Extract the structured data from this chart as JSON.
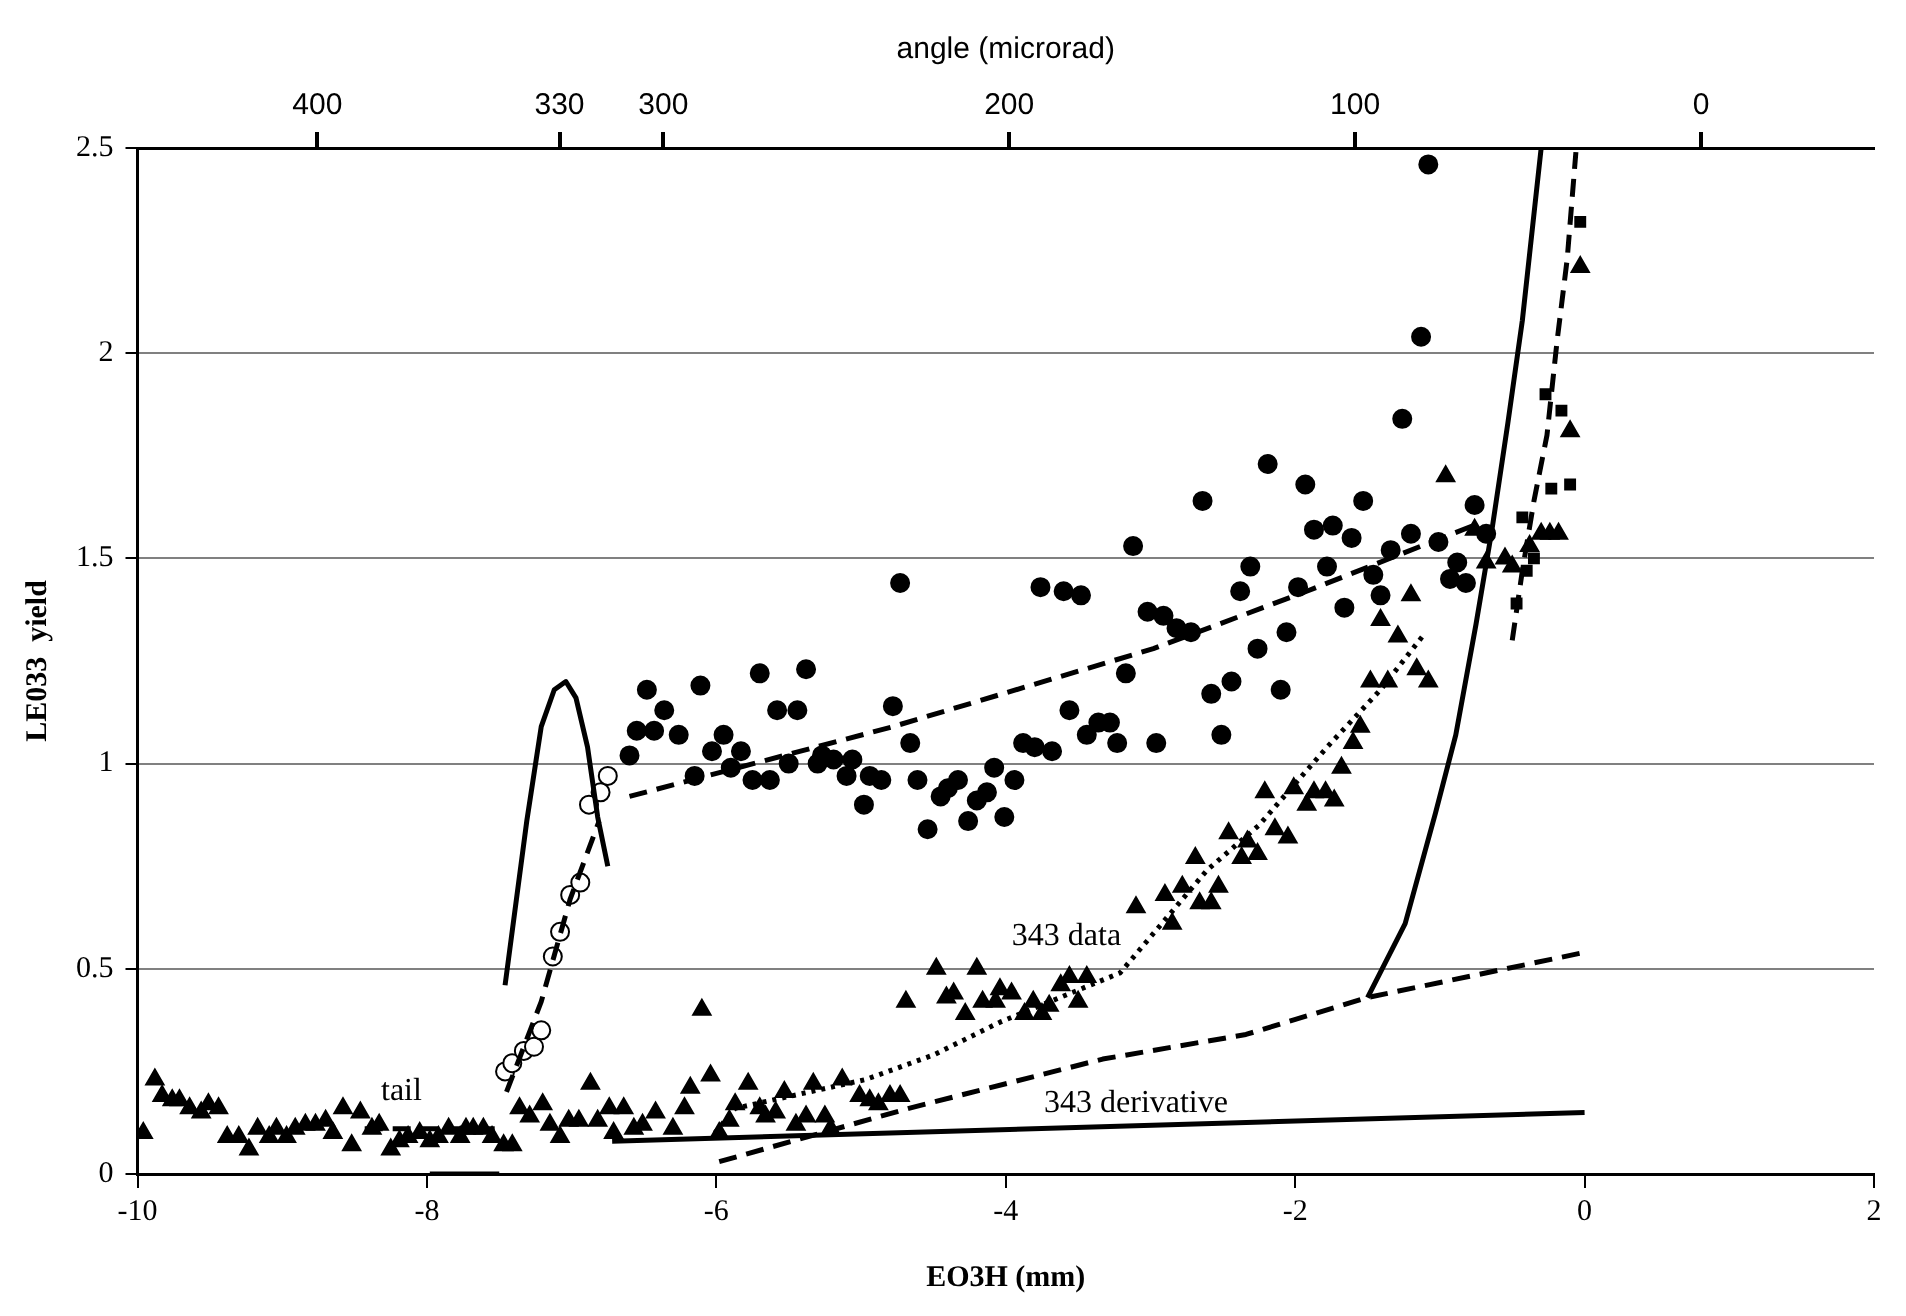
{
  "chart_data": {
    "type": "scatter",
    "xlabel": "EO3H (mm)",
    "ylabel": "LE033  yield",
    "x2label": "angle (microrad)",
    "xlim": [
      -10,
      2
    ],
    "xticks": [
      -10,
      -8,
      -6,
      -4,
      -2,
      0,
      2
    ],
    "ylim": [
      0,
      2.5
    ],
    "yticks": [
      0,
      0.5,
      1,
      1.5,
      2,
      2.5
    ],
    "x2lim": [
      452,
      -50
    ],
    "x2ticks": [
      400,
      330,
      300,
      200,
      100,
      0
    ],
    "grid": "y",
    "legend": false,
    "annotations": [
      "tail",
      "343 data",
      "343 derivative"
    ],
    "series": [
      {
        "type": "line",
        "marker": "none",
        "line_style": "solid",
        "color": "#000000",
        "x": [
          -7.98,
          -7.5
        ],
        "values": [
          0,
          0
        ]
      },
      {
        "type": "line",
        "marker": "none",
        "line_style": "dashed",
        "color": "#000000",
        "x": [
          -8.43,
          -7.5
        ],
        "values": [
          0.11,
          0.11
        ]
      },
      {
        "type": "line",
        "marker": "none",
        "line_style": "solid",
        "color": "#000000",
        "x": [
          -6.72,
          0
        ],
        "values": [
          0.08,
          0.15
        ]
      },
      {
        "type": "line",
        "marker": "none",
        "line_style": "dashed",
        "color": "#000000",
        "x": [
          -5.98,
          -4.67,
          -3.33,
          -2.34,
          -1.5,
          0
        ],
        "values": [
          0.03,
          0.16,
          0.28,
          0.34,
          0.43,
          0.54
        ]
      },
      {
        "type": "line",
        "marker": "none",
        "line_style": "dotted",
        "color": "#000000",
        "x": [
          -6.01,
          -5.87,
          -4.97,
          -4.5,
          -4.04,
          -3.21,
          -2.61,
          -2.25,
          -1.78,
          -1.41,
          -1.12
        ],
        "values": [
          0.1,
          0.16,
          0.23,
          0.29,
          0.37,
          0.49,
          0.74,
          0.85,
          1.04,
          1.18,
          1.31
        ]
      },
      {
        "type": "line",
        "marker": "none",
        "line_style": "dashed",
        "color": "#000000",
        "x": [
          -7.45,
          -7.21,
          -7.01,
          -6.81
        ],
        "values": [
          0.2,
          0.42,
          0.67,
          0.86
        ]
      },
      {
        "type": "line",
        "marker": "none",
        "line_style": "dashed",
        "color": "#000000",
        "x": [
          -6.6,
          -4.78,
          -2.98,
          -1.92,
          -0.77
        ],
        "values": [
          0.92,
          1.09,
          1.28,
          1.42,
          1.58
        ]
      },
      {
        "type": "line",
        "marker": "none",
        "line_style": "solid",
        "color": "#000000",
        "x": [
          -7.46,
          -7.31,
          -7.21,
          -7.12,
          -7.04,
          -6.97,
          -6.89,
          -6.82,
          -6.75
        ],
        "values": [
          0.46,
          0.86,
          1.09,
          1.18,
          1.2,
          1.16,
          1.04,
          0.87,
          0.75
        ]
      },
      {
        "type": "line",
        "marker": "none",
        "line_style": "solid",
        "color": "#000000",
        "x": [
          -1.5,
          -1.24,
          -1.03,
          -0.89,
          -0.75,
          -0.64,
          -0.53,
          -0.43,
          -0.3
        ],
        "values": [
          0.43,
          0.61,
          0.88,
          1.07,
          1.34,
          1.57,
          1.83,
          2.08,
          2.5
        ]
      },
      {
        "type": "line",
        "marker": "none",
        "line_style": "dashed",
        "color": "#000000",
        "x": [
          -0.5,
          -0.43,
          -0.35,
          -0.26,
          -0.19,
          -0.12,
          -0.06
        ],
        "values": [
          1.3,
          1.47,
          1.64,
          1.8,
          2.03,
          2.23,
          2.49
        ]
      },
      {
        "marker": "triangle",
        "color": "#000000",
        "x": [
          -9.96,
          -9.88,
          -9.83,
          -9.76,
          -9.71,
          -9.64,
          -9.56,
          -9.51,
          -9.44,
          -9.38,
          -9.3,
          -9.23,
          -9.17,
          -9.09,
          -9.04,
          -8.97,
          -8.91,
          -8.84,
          -8.77,
          -8.7,
          -8.65,
          -8.58,
          -8.52,
          -8.46,
          -8.38,
          -8.33,
          -8.25,
          -8.19,
          -8.13,
          -8.05,
          -7.98,
          -7.92,
          -7.85,
          -7.77,
          -7.73,
          -7.68,
          -7.61,
          -7.55,
          -7.47,
          -7.41,
          -7.36,
          -7.29,
          -7.2,
          -7.15,
          -7.08,
          -7.02,
          -6.95,
          -6.87,
          -6.82,
          -6.74,
          -6.71,
          -6.64,
          -6.57,
          -6.51,
          -6.42,
          -6.3,
          -6.22,
          -6.18,
          -6.1,
          -6.04,
          -5.87,
          -5.91,
          -5.98,
          -5.78,
          -5.7,
          -5.66,
          -5.59,
          -5.53,
          -5.45,
          -5.38,
          -5.33,
          -5.25,
          -5.21,
          -5.13,
          -5.01,
          -4.94,
          -4.88,
          -4.8,
          -4.73,
          -4.69,
          -4.48,
          -4.41,
          -4.36,
          -4.28,
          -4.2,
          -4.16,
          -4.07,
          -4.04,
          -3.96,
          -3.87,
          -3.81,
          -3.75,
          -3.7,
          -3.62,
          -3.56,
          -3.5,
          -3.44,
          -3.1,
          -2.9,
          -2.85,
          -2.78,
          -2.69,
          -2.66,
          -2.58,
          -2.53,
          -2.46,
          -2.37,
          -2.33,
          -2.26,
          -2.14,
          -2.05,
          -2.21,
          -2.01,
          -1.92,
          -1.87,
          -1.79,
          -1.73,
          -1.68,
          -1.6,
          -1.55,
          -1.48,
          -1.36,
          -1.29,
          -1.16,
          -1.08,
          -1.41,
          -1.2,
          -0.96,
          -0.76,
          -0.68,
          -0.55,
          -0.5,
          -0.38,
          -0.3,
          -0.24,
          -0.18,
          -0.1,
          -0.03
        ],
        "values": [
          0.1,
          0.23,
          0.19,
          0.18,
          0.18,
          0.16,
          0.15,
          0.17,
          0.16,
          0.09,
          0.09,
          0.06,
          0.11,
          0.09,
          0.11,
          0.09,
          0.11,
          0.12,
          0.12,
          0.13,
          0.1,
          0.16,
          0.07,
          0.15,
          0.11,
          0.12,
          0.06,
          0.08,
          0.09,
          0.1,
          0.08,
          0.09,
          0.11,
          0.09,
          0.11,
          0.11,
          0.11,
          0.09,
          0.07,
          0.07,
          0.16,
          0.14,
          0.17,
          0.12,
          0.09,
          0.13,
          0.13,
          0.22,
          0.13,
          0.16,
          0.1,
          0.16,
          0.11,
          0.12,
          0.15,
          0.11,
          0.16,
          0.21,
          0.4,
          0.24,
          0.17,
          0.13,
          0.1,
          0.22,
          0.16,
          0.14,
          0.15,
          0.2,
          0.12,
          0.14,
          0.22,
          0.14,
          0.11,
          0.23,
          0.19,
          0.18,
          0.17,
          0.19,
          0.19,
          0.42,
          0.5,
          0.43,
          0.44,
          0.39,
          0.5,
          0.42,
          0.42,
          0.45,
          0.44,
          0.39,
          0.42,
          0.39,
          0.41,
          0.46,
          0.48,
          0.42,
          0.48,
          0.65,
          0.68,
          0.61,
          0.7,
          0.77,
          0.66,
          0.66,
          0.7,
          0.83,
          0.77,
          0.81,
          0.78,
          0.84,
          0.82,
          0.93,
          0.94,
          0.9,
          0.93,
          0.93,
          0.91,
          0.99,
          1.05,
          1.09,
          1.2,
          1.2,
          1.31,
          1.23,
          1.2,
          1.35,
          1.41,
          1.7,
          1.57,
          1.49,
          1.5,
          1.48,
          1.53,
          1.56,
          1.56,
          1.56,
          1.81,
          2.21
        ]
      },
      {
        "marker": "circle",
        "color": "#000000",
        "x": [
          -6.6,
          -6.48,
          -6.55,
          -6.43,
          -6.36,
          -6.26,
          -6.11,
          -6.15,
          -6.03,
          -5.95,
          -5.9,
          -5.83,
          -5.75,
          -5.7,
          -5.63,
          -5.58,
          -5.44,
          -5.38,
          -5.5,
          -5.3,
          -5.27,
          -5.19,
          -5.06,
          -5.1,
          -4.98,
          -4.94,
          -4.86,
          -4.78,
          -4.73,
          -4.66,
          -4.61,
          -4.54,
          -4.45,
          -4.4,
          -4.33,
          -4.26,
          -4.2,
          -4.13,
          -4.08,
          -4.01,
          -3.94,
          -3.88,
          -3.8,
          -3.76,
          -3.68,
          -3.6,
          -3.48,
          -3.56,
          -3.44,
          -3.28,
          -3.23,
          -3.17,
          -3.12,
          -3.02,
          -2.91,
          -2.82,
          -2.72,
          -3.36,
          -2.96,
          -2.58,
          -2.51,
          -2.64,
          -2.44,
          -2.38,
          -2.31,
          -2.26,
          -2.19,
          -2.1,
          -2.06,
          -1.98,
          -1.93,
          -1.87,
          -1.78,
          -1.74,
          -1.66,
          -1.61,
          -1.53,
          -1.46,
          -1.41,
          -1.34,
          -1.26,
          -1.2,
          -1.13,
          -1.08,
          -1.01,
          -0.93,
          -0.88,
          -0.82,
          -0.76,
          -0.68
        ],
        "values": [
          1.02,
          1.18,
          1.08,
          1.08,
          1.13,
          1.07,
          1.19,
          0.97,
          1.03,
          1.07,
          0.99,
          1.03,
          0.96,
          1.22,
          0.96,
          1.13,
          1.13,
          1.23,
          1,
          1,
          1.02,
          1.01,
          1.01,
          0.97,
          0.9,
          0.97,
          0.96,
          1.14,
          1.44,
          1.05,
          0.96,
          0.84,
          0.92,
          0.94,
          0.96,
          0.86,
          0.91,
          0.93,
          0.99,
          0.87,
          0.96,
          1.05,
          1.04,
          1.43,
          1.03,
          1.42,
          1.41,
          1.13,
          1.07,
          1.1,
          1.05,
          1.22,
          1.53,
          1.37,
          1.36,
          1.33,
          1.32,
          1.1,
          1.05,
          1.17,
          1.07,
          1.64,
          1.2,
          1.42,
          1.48,
          1.28,
          1.73,
          1.18,
          1.32,
          1.43,
          1.68,
          1.57,
          1.48,
          1.58,
          1.38,
          1.55,
          1.64,
          1.46,
          1.41,
          1.52,
          1.84,
          1.56,
          2.04,
          2.46,
          1.54,
          1.45,
          1.49,
          1.44,
          1.63,
          1.56
        ]
      },
      {
        "marker": "circle",
        "color": "#ffffff",
        "x": [
          -7.46,
          -7.41,
          -7.33,
          -7.26,
          -7.21,
          -7.13,
          -7.08,
          -7.01,
          -6.94,
          -6.88,
          -6.8,
          -6.75
        ],
        "values": [
          0.25,
          0.27,
          0.3,
          0.31,
          0.35,
          0.53,
          0.59,
          0.68,
          0.71,
          0.9,
          0.93,
          0.97
        ]
      },
      {
        "marker": "square",
        "color": "#000000",
        "x": [
          -0.27,
          -0.16,
          -0.23,
          -0.1,
          -0.43,
          -0.35,
          -0.4,
          -0.47,
          -0.03
        ],
        "values": [
          1.9,
          1.86,
          1.67,
          1.68,
          1.6,
          1.5,
          1.47,
          1.39,
          2.32
        ]
      }
    ]
  }
}
